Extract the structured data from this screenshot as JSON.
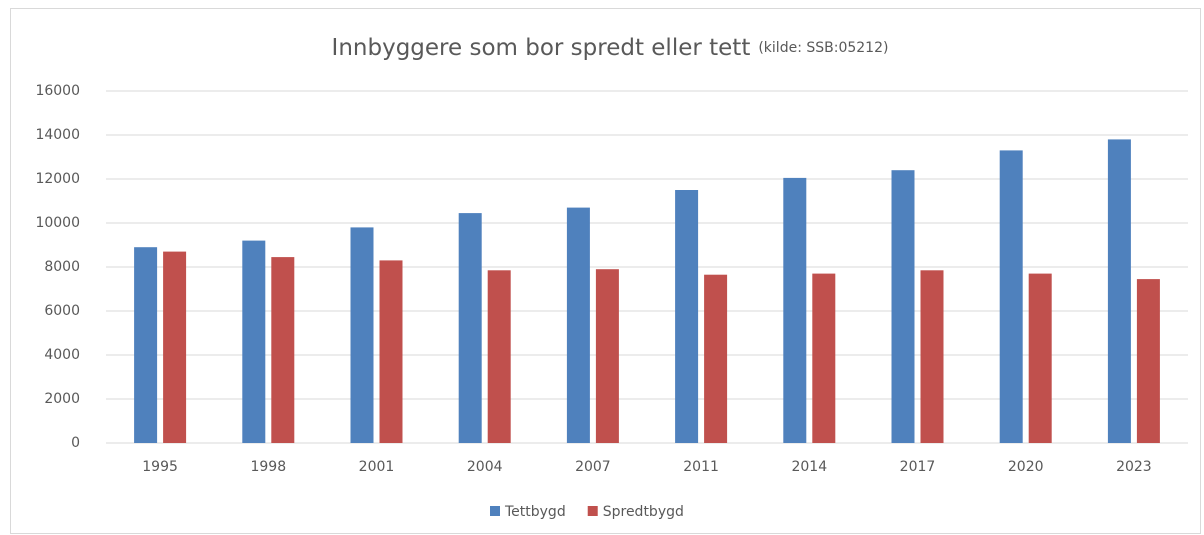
{
  "chart_data": {
    "type": "bar",
    "title": "Innbyggere som bor spredt eller tett",
    "subtitle": "(kilde: SSB:05212)",
    "categories": [
      "1995",
      "1998",
      "2001",
      "2004",
      "2007",
      "2011",
      "2014",
      "2017",
      "2020",
      "2023"
    ],
    "series": [
      {
        "name": "Tettbygd",
        "color": "#4f81bd",
        "values": [
          8900,
          9200,
          9800,
          10450,
          10700,
          11500,
          12050,
          12400,
          13300,
          13800
        ]
      },
      {
        "name": "Spredtbygd",
        "color": "#c0504d",
        "values": [
          8700,
          8450,
          8300,
          7850,
          7900,
          7650,
          7700,
          7850,
          7700,
          7450
        ]
      }
    ],
    "ylim": [
      0,
      16000
    ],
    "yticks": [
      0,
      2000,
      4000,
      6000,
      8000,
      10000,
      12000,
      14000,
      16000
    ],
    "grid": true,
    "legend": "bottom"
  }
}
